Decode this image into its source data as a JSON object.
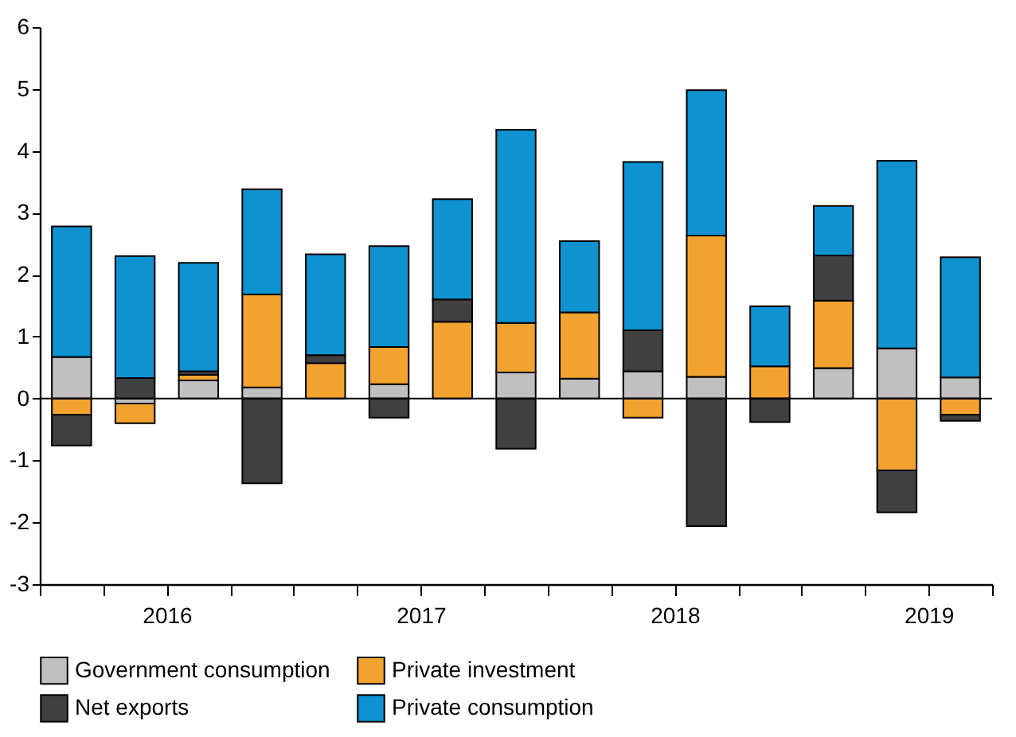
{
  "chart_data": {
    "type": "bar",
    "stacked": true,
    "x": [
      2016.125,
      2016.375,
      2016.625,
      2016.875,
      2017.125,
      2017.375,
      2017.625,
      2017.875,
      2018.125,
      2018.375,
      2018.625,
      2018.875,
      2019.125,
      2019.375,
      2019.625
    ],
    "series": [
      {
        "name": "Government consumption",
        "color": "#c0c0c0",
        "values": [
          0.67,
          -0.08,
          0.29,
          0.18,
          null,
          0.23,
          null,
          0.42,
          0.32,
          0.44,
          0.35,
          null,
          0.49,
          0.81,
          0.34
        ]
      },
      {
        "name": "Private investment",
        "color": "#f2a32f",
        "values": [
          -0.26,
          -0.32,
          0.09,
          1.5,
          0.57,
          0.6,
          1.24,
          0.8,
          1.07,
          -0.31,
          2.28,
          0.52,
          1.09,
          -1.16,
          -0.26
        ]
      },
      {
        "name": "Net exports",
        "color": "#404040",
        "values": [
          -0.5,
          0.33,
          0.06,
          -1.37,
          0.13,
          -0.31,
          0.36,
          -0.81,
          null,
          0.66,
          -2.06,
          -0.38,
          0.73,
          -0.68,
          -0.1
        ]
      },
      {
        "name": "Private consumption",
        "color": "#0e92d0",
        "values": [
          2.11,
          1.97,
          1.75,
          1.7,
          1.63,
          1.63,
          1.62,
          3.12,
          1.15,
          2.72,
          2.35,
          0.97,
          0.8,
          3.03,
          1.94
        ]
      }
    ],
    "xlim": [
      2016,
      2019.75
    ],
    "xticks": [
      {
        "value": 2016,
        "label": null
      },
      {
        "value": 2016.25,
        "label": null
      },
      {
        "value": 2016.5,
        "label": "2016"
      },
      {
        "value": 2016.75,
        "label": null
      },
      {
        "value": 2017,
        "label": null
      },
      {
        "value": 2017.25,
        "label": null
      },
      {
        "value": 2017.5,
        "label": "2017"
      },
      {
        "value": 2017.75,
        "label": null
      },
      {
        "value": 2018,
        "label": null
      },
      {
        "value": 2018.25,
        "label": null
      },
      {
        "value": 2018.5,
        "label": "2018"
      },
      {
        "value": 2018.75,
        "label": null
      },
      {
        "value": 2019,
        "label": null
      },
      {
        "value": 2019.25,
        "label": null
      },
      {
        "value": 2019.5,
        "label": "2019"
      },
      {
        "value": 2019.75,
        "label": null
      }
    ],
    "ylim": [
      -3,
      6
    ],
    "yticks": [
      -3,
      -2,
      -1,
      0,
      1,
      2,
      3,
      4,
      5,
      6
    ],
    "ref_lines": [
      {
        "axis": "y",
        "value": 0,
        "color": "#000000"
      }
    ],
    "grid": false,
    "legend": "bottom"
  }
}
